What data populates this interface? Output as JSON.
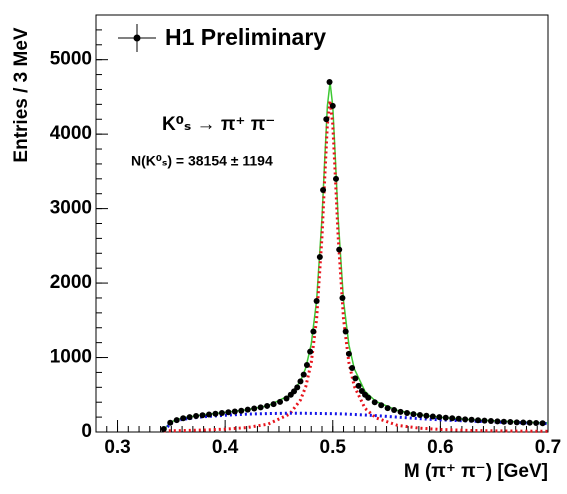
{
  "chart_data": {
    "type": "scatter",
    "xlabel": "M (π⁺ π⁻) [GeV]",
    "ylabel": "Entries / 3 MeV",
    "annotations": [
      "K⁰ₛ → π⁺ π⁻",
      "N(K⁰ₛ) = 38154 ± 1194"
    ],
    "annotation_color": "#e8141c",
    "xlim": [
      0.28,
      0.7
    ],
    "ylim": [
      0,
      5600
    ],
    "xticks": [
      0.3,
      0.4,
      0.5,
      0.6,
      0.7
    ],
    "yticks": [
      0,
      1000,
      2000,
      3000,
      4000,
      5000
    ],
    "legend": "upper left",
    "series": [
      {
        "name": "H1 Preliminary",
        "color": "#000000",
        "x": [
          0.343,
          0.349,
          0.355,
          0.361,
          0.367,
          0.373,
          0.379,
          0.385,
          0.391,
          0.397,
          0.403,
          0.409,
          0.415,
          0.421,
          0.427,
          0.433,
          0.439,
          0.445,
          0.451,
          0.457,
          0.461,
          0.464,
          0.467,
          0.47,
          0.473,
          0.476,
          0.479,
          0.482,
          0.485,
          0.488,
          0.491,
          0.494,
          0.497,
          0.5,
          0.503,
          0.506,
          0.509,
          0.512,
          0.515,
          0.518,
          0.521,
          0.524,
          0.527,
          0.53,
          0.533,
          0.539,
          0.545,
          0.551,
          0.557,
          0.563,
          0.569,
          0.575,
          0.581,
          0.587,
          0.593,
          0.599,
          0.605,
          0.611,
          0.617,
          0.623,
          0.629,
          0.635,
          0.641,
          0.647,
          0.653,
          0.659,
          0.665,
          0.671,
          0.677,
          0.683,
          0.689,
          0.695
        ],
        "values": [
          40,
          125,
          160,
          185,
          200,
          215,
          225,
          235,
          245,
          255,
          265,
          275,
          285,
          300,
          315,
          330,
          350,
          375,
          405,
          450,
          500,
          545,
          600,
          680,
          770,
          900,
          1080,
          1350,
          1760,
          2350,
          3250,
          4200,
          4700,
          4380,
          3400,
          2450,
          1800,
          1350,
          1050,
          860,
          720,
          620,
          550,
          500,
          460,
          400,
          360,
          320,
          295,
          270,
          255,
          240,
          228,
          218,
          208,
          200,
          192,
          185,
          178,
          170,
          165,
          158,
          152,
          147,
          142,
          138,
          134,
          130,
          127,
          124,
          121,
          118
        ]
      },
      {
        "type": "line",
        "color": "#3cc832",
        "style": "solid",
        "x": [
          0.343,
          0.35,
          0.36,
          0.38,
          0.4,
          0.42,
          0.44,
          0.46,
          0.47,
          0.475,
          0.48,
          0.485,
          0.49,
          0.4925,
          0.495,
          0.4975,
          0.5,
          0.5025,
          0.505,
          0.51,
          0.515,
          0.52,
          0.53,
          0.54,
          0.56,
          0.58,
          0.6,
          0.63,
          0.66,
          0.7
        ],
        "values": [
          35,
          137,
          189,
          231,
          263,
          299,
          354,
          494,
          682,
          865,
          1181,
          1768,
          2875,
          3647,
          4379,
          4696,
          4378,
          3645,
          2871,
          1761,
          1170,
          849,
          545,
          411,
          290,
          232,
          197,
          165,
          144,
          121
        ]
      },
      {
        "type": "line",
        "color": "#e8141c",
        "style": "dotted",
        "x": [
          0.343,
          0.35,
          0.36,
          0.38,
          0.4,
          0.42,
          0.44,
          0.46,
          0.47,
          0.475,
          0.48,
          0.485,
          0.49,
          0.4925,
          0.495,
          0.4975,
          0.5,
          0.5025,
          0.505,
          0.51,
          0.515,
          0.52,
          0.53,
          0.54,
          0.56,
          0.58,
          0.6,
          0.63,
          0.66,
          0.7
        ],
        "values": [
          15,
          17,
          19,
          26,
          38,
          59,
          106,
          242,
          430,
          614,
          931,
          1519,
          2627,
          3400,
          4132,
          4450,
          4132,
          3400,
          2627,
          1519,
          931,
          614,
          317,
          191,
          90,
          52,
          34,
          20,
          14,
          9
        ]
      },
      {
        "type": "line",
        "color": "#1414e8",
        "style": "dotted",
        "x": [
          0.343,
          0.35,
          0.36,
          0.38,
          0.4,
          0.42,
          0.44,
          0.46,
          0.47,
          0.475,
          0.48,
          0.485,
          0.49,
          0.4925,
          0.495,
          0.4975,
          0.5,
          0.5025,
          0.505,
          0.51,
          0.515,
          0.52,
          0.53,
          0.54,
          0.56,
          0.58,
          0.6,
          0.63,
          0.66,
          0.7
        ],
        "values": [
          20,
          120,
          170,
          205,
          225,
          240,
          248,
          252,
          252,
          251,
          250,
          249,
          248,
          247,
          247,
          246,
          246,
          245,
          244,
          242,
          239,
          235,
          228,
          220,
          200,
          180,
          163,
          145,
          130,
          112
        ]
      }
    ]
  }
}
